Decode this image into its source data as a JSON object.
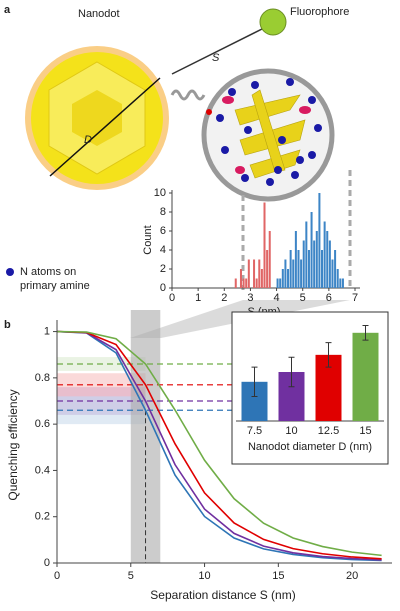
{
  "figure": {
    "panel_a": "a",
    "panel_b": "b",
    "nanodot": "Nanodot",
    "fluorophore": "Fluorophore",
    "s_label": "S",
    "d_label": "D",
    "legend_lines": [
      "N atoms on",
      "primary amine"
    ]
  },
  "chart_data": [
    {
      "type": "histogram",
      "xlabel": "S (nm)",
      "ylabel": "Count",
      "xlim": [
        0,
        7
      ],
      "ylim": [
        0,
        10
      ],
      "xticks": [
        0,
        1,
        2,
        3,
        4,
        5,
        6,
        7
      ],
      "yticks": [
        0,
        2,
        4,
        6,
        8,
        10
      ],
      "series": [
        {
          "color": "#e06666",
          "bins": [
            2.4,
            2.5,
            2.6,
            2.7,
            2.8,
            2.9,
            3.0,
            3.1,
            3.2,
            3.3,
            3.4,
            3.5,
            3.6,
            3.7,
            3.8
          ],
          "counts": [
            1,
            0,
            2,
            1,
            1,
            3,
            0,
            3,
            1,
            3,
            2,
            9,
            4,
            6
          ]
        },
        {
          "color": "#3d85c6",
          "bins": [
            4.0,
            4.1,
            4.2,
            4.3,
            4.4,
            4.5,
            4.6,
            4.7,
            4.8,
            4.9,
            5.0,
            5.1,
            5.2,
            5.3,
            5.4,
            5.5,
            5.6,
            5.7,
            5.8,
            5.9,
            6.0,
            6.1,
            6.2,
            6.3,
            6.4,
            6.5,
            6.6
          ],
          "counts": [
            1,
            1,
            2,
            3,
            2,
            4,
            3,
            6,
            4,
            3,
            5,
            7,
            4,
            8,
            5,
            6,
            10,
            4,
            7,
            6,
            5,
            3,
            4,
            2,
            1,
            1
          ]
        }
      ]
    },
    {
      "type": "line",
      "xlabel": "Separation distance S (nm)",
      "ylabel": "Quenching efficiency",
      "xlim": [
        0,
        22.5
      ],
      "ylim": [
        0,
        1.05
      ],
      "xticks": [
        0,
        5,
        10,
        15,
        20
      ],
      "yticks": [
        0,
        0.2,
        0.4,
        0.6,
        0.8,
        1
      ],
      "highlight_x": [
        5,
        7
      ],
      "marker_x": 6,
      "x": [
        0,
        2,
        4,
        6,
        8,
        10,
        12,
        14,
        16,
        18,
        20,
        22
      ],
      "series": [
        {
          "color": "#2e75b6",
          "values": [
            1,
            0.994,
            0.908,
            0.66,
            0.38,
            0.201,
            0.108,
            0.061,
            0.037,
            0.023,
            0.015,
            0.011
          ]
        },
        {
          "color": "#7030a0",
          "values": [
            1,
            0.995,
            0.922,
            0.7,
            0.425,
            0.233,
            0.128,
            0.073,
            0.044,
            0.028,
            0.019,
            0.013
          ]
        },
        {
          "color": "#e00000",
          "values": [
            1,
            0.996,
            0.944,
            0.77,
            0.515,
            0.303,
            0.173,
            0.102,
            0.062,
            0.04,
            0.026,
            0.018
          ]
        },
        {
          "color": "#70ad47",
          "values": [
            1,
            0.998,
            0.969,
            0.86,
            0.661,
            0.444,
            0.278,
            0.172,
            0.108,
            0.071,
            0.047,
            0.033
          ]
        }
      ]
    },
    {
      "type": "bar",
      "xlabel": "Nanodot diameter D (nm)",
      "ylim": [
        0.5,
        0.9
      ],
      "categories": [
        "7.5",
        "10",
        "12.5",
        "15"
      ],
      "values": [
        0.66,
        0.7,
        0.77,
        0.86
      ],
      "errors": [
        0.06,
        0.06,
        0.05,
        0.03
      ],
      "colors": [
        "#2e75b6",
        "#7030a0",
        "#e00000",
        "#70ad47"
      ]
    }
  ]
}
